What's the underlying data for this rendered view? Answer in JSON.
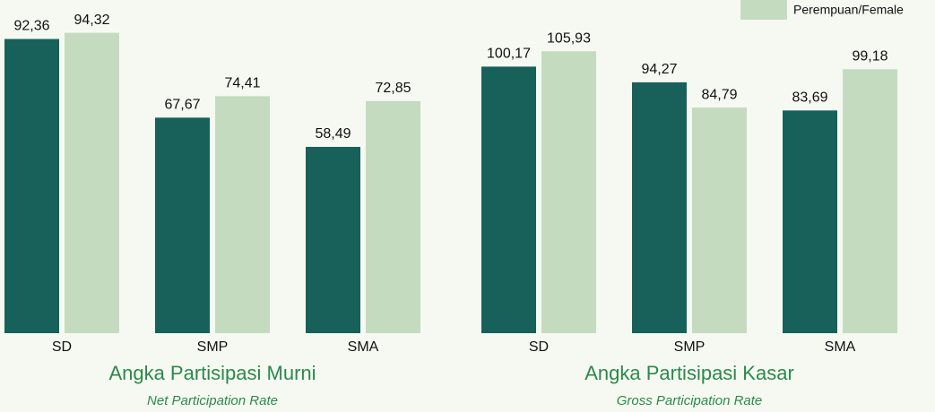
{
  "chart_data": [
    {
      "type": "bar",
      "title": "Angka Partisipasi Murni",
      "subtitle": "Net Participation Rate",
      "categories": [
        "SD",
        "SMP",
        "SMA"
      ],
      "series": [
        {
          "color": "#17615a",
          "values": [
            92.36,
            67.67,
            58.49
          ],
          "value_labels": [
            "92,36",
            "67,67",
            "58,49"
          ]
        },
        {
          "color": "#c5dbbf",
          "values": [
            94.32,
            74.41,
            72.85
          ],
          "value_labels": [
            "94,32",
            "74,41",
            "72,85"
          ]
        }
      ],
      "ylim": [
        0,
        104.6
      ]
    },
    {
      "type": "bar",
      "title": "Angka Partisipasi Kasar",
      "subtitle": "Gross Participation Rate",
      "categories": [
        "SD",
        "SMP",
        "SMA"
      ],
      "series": [
        {
          "color": "#17615a",
          "values": [
            100.17,
            94.27,
            83.69
          ],
          "value_labels": [
            "100,17",
            "94,27",
            "83,69"
          ]
        },
        {
          "name": "Perempuan/Female",
          "color": "#c5dbbf",
          "values": [
            105.93,
            84.79,
            99.18
          ],
          "value_labels": [
            "105,93",
            "84,79",
            "99,18"
          ]
        }
      ],
      "ylim": [
        0,
        125.2
      ]
    }
  ]
}
